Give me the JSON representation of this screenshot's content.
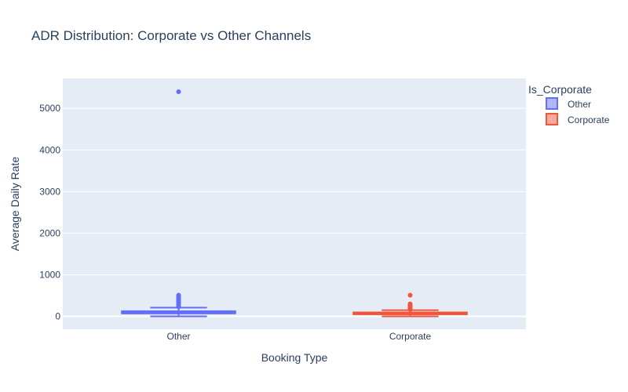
{
  "chart_data": {
    "type": "box",
    "title": "ADR Distribution: Corporate vs Other Channels",
    "xlabel": "Booking Type",
    "ylabel": "Average Daily Rate",
    "categories": [
      "Other",
      "Corporate"
    ],
    "ylim": [
      -310,
      5720
    ],
    "yticks": [
      0,
      1000,
      2000,
      3000,
      4000,
      5000
    ],
    "grid": true,
    "legend": {
      "title": "Is_Corporate",
      "placement": "top-right"
    },
    "series": [
      {
        "name": "Other",
        "color": "#636efa",
        "category": "Other",
        "box": {
          "lower_fence": 0,
          "q1": 70,
          "median": 95,
          "q3": 125,
          "upper_fence": 210
        },
        "outliers": [
          230,
          250,
          270,
          290,
          310,
          330,
          350,
          370,
          390,
          410,
          430,
          450,
          470,
          490,
          510,
          5400
        ]
      },
      {
        "name": "Corporate",
        "color": "#ef553b",
        "category": "Corporate",
        "box": {
          "lower_fence": 0,
          "q1": 50,
          "median": 70,
          "q3": 95,
          "upper_fence": 150
        },
        "outliers": [
          165,
          180,
          200,
          220,
          240,
          260,
          280,
          300,
          510
        ]
      }
    ]
  }
}
